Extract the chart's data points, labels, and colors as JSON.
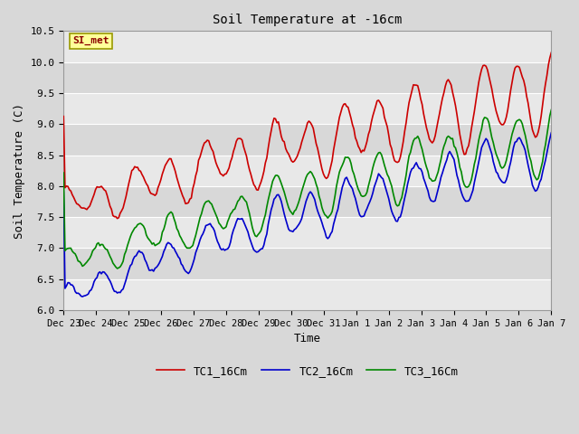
{
  "title": "Soil Temperature at -16cm",
  "xlabel": "Time",
  "ylabel": "Soil Temperature (C)",
  "ylim": [
    6.0,
    10.5
  ],
  "tc1_color": "#cc0000",
  "tc2_color": "#0000cc",
  "tc3_color": "#008800",
  "legend_label_1": "TC1_16Cm",
  "legend_label_2": "TC2_16Cm",
  "legend_label_3": "TC3_16Cm",
  "watermark": "SI_met",
  "xtick_labels": [
    "Dec 23",
    "Dec 24",
    "Dec 25",
    "Dec 26",
    "Dec 27",
    "Dec 28",
    "Dec 29",
    "Dec 30",
    "Dec 31",
    "Jan 1",
    "Jan 2",
    "Jan 3",
    "Jan 4",
    "Jan 5",
    "Jan 6",
    "Jan 7"
  ],
  "ytick_values": [
    6.0,
    6.5,
    7.0,
    7.5,
    8.0,
    8.5,
    9.0,
    9.5,
    10.0,
    10.5
  ],
  "band_colors": [
    "#e8e8e8",
    "#d8d8d8"
  ],
  "fig_bg": "#d8d8d8",
  "plot_bg": "#d8d8d8"
}
